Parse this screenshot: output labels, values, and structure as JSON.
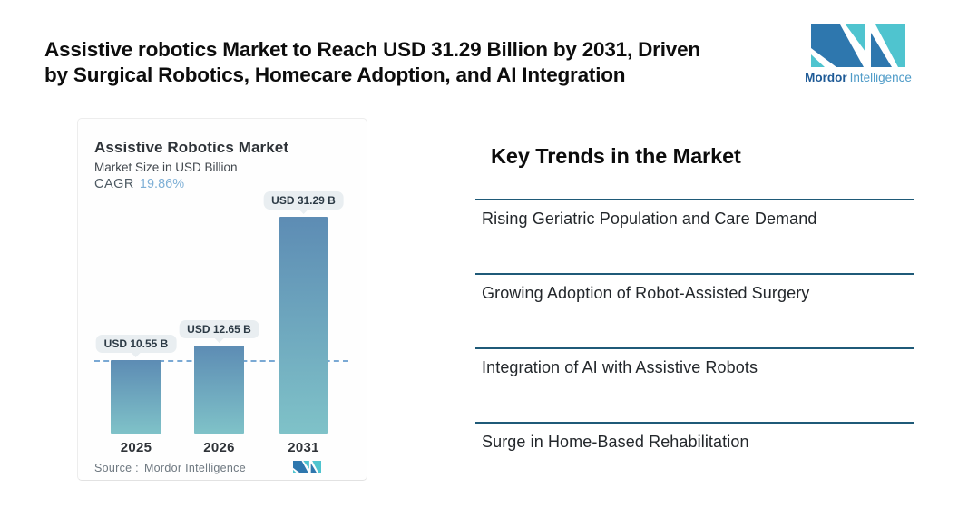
{
  "header": {
    "title_line1": "Assistive robotics Market to Reach USD 31.29 Billion by 2031, Driven",
    "title_line2": "by Surgical Robotics, Homecare Adoption, and AI Integration"
  },
  "brand": {
    "logo_icon": "mordor-intelligence-m-mark",
    "name_primary": "Mordor",
    "name_secondary": "Intelligence",
    "mark_dark_blue": "#2e77ae",
    "mark_teal": "#4fc4cf",
    "wordmark_primary_color": "#1e5a96",
    "wordmark_secondary_color": "#4e9bc8"
  },
  "chart_card": {
    "title": "Assistive Robotics Market",
    "subtitle": "Market Size in USD Billion",
    "cagr_label": "CAGR",
    "cagr_value": "19.86%",
    "cagr_value_color": "#7fb0d6",
    "source_label": "Source :",
    "source_value": "Mordor Intelligence",
    "pill_bg_color": "#e9eef1",
    "dashed_line_color": "#7aa9d4"
  },
  "chart_data": {
    "type": "bar",
    "title": "Assistive Robotics Market",
    "ylabel": "Market Size in USD Billion",
    "unit": "USD Billion",
    "cagr_percent": 19.86,
    "categories": [
      "2025",
      "2026",
      "2031"
    ],
    "values": [
      10.55,
      12.65,
      31.29
    ],
    "value_labels": [
      "USD 10.55 B",
      "USD 12.65 B",
      "USD 31.29 B"
    ],
    "ylim": [
      0,
      31.29
    ],
    "grid": false,
    "baseline_marker_value": 10.55,
    "bar_color_top": "#5d8cb4",
    "bar_color_bottom": "#7fc2c8"
  },
  "trends": {
    "heading": "Key Trends in the Market",
    "rule_color": "#1f5a78",
    "items": [
      {
        "label": "Rising Geriatric Population and Care Demand"
      },
      {
        "label": "Growing Adoption of Robot-Assisted Surgery"
      },
      {
        "label": "Integration of AI with Assistive Robots"
      },
      {
        "label": "Surge in Home-Based Rehabilitation"
      }
    ]
  }
}
